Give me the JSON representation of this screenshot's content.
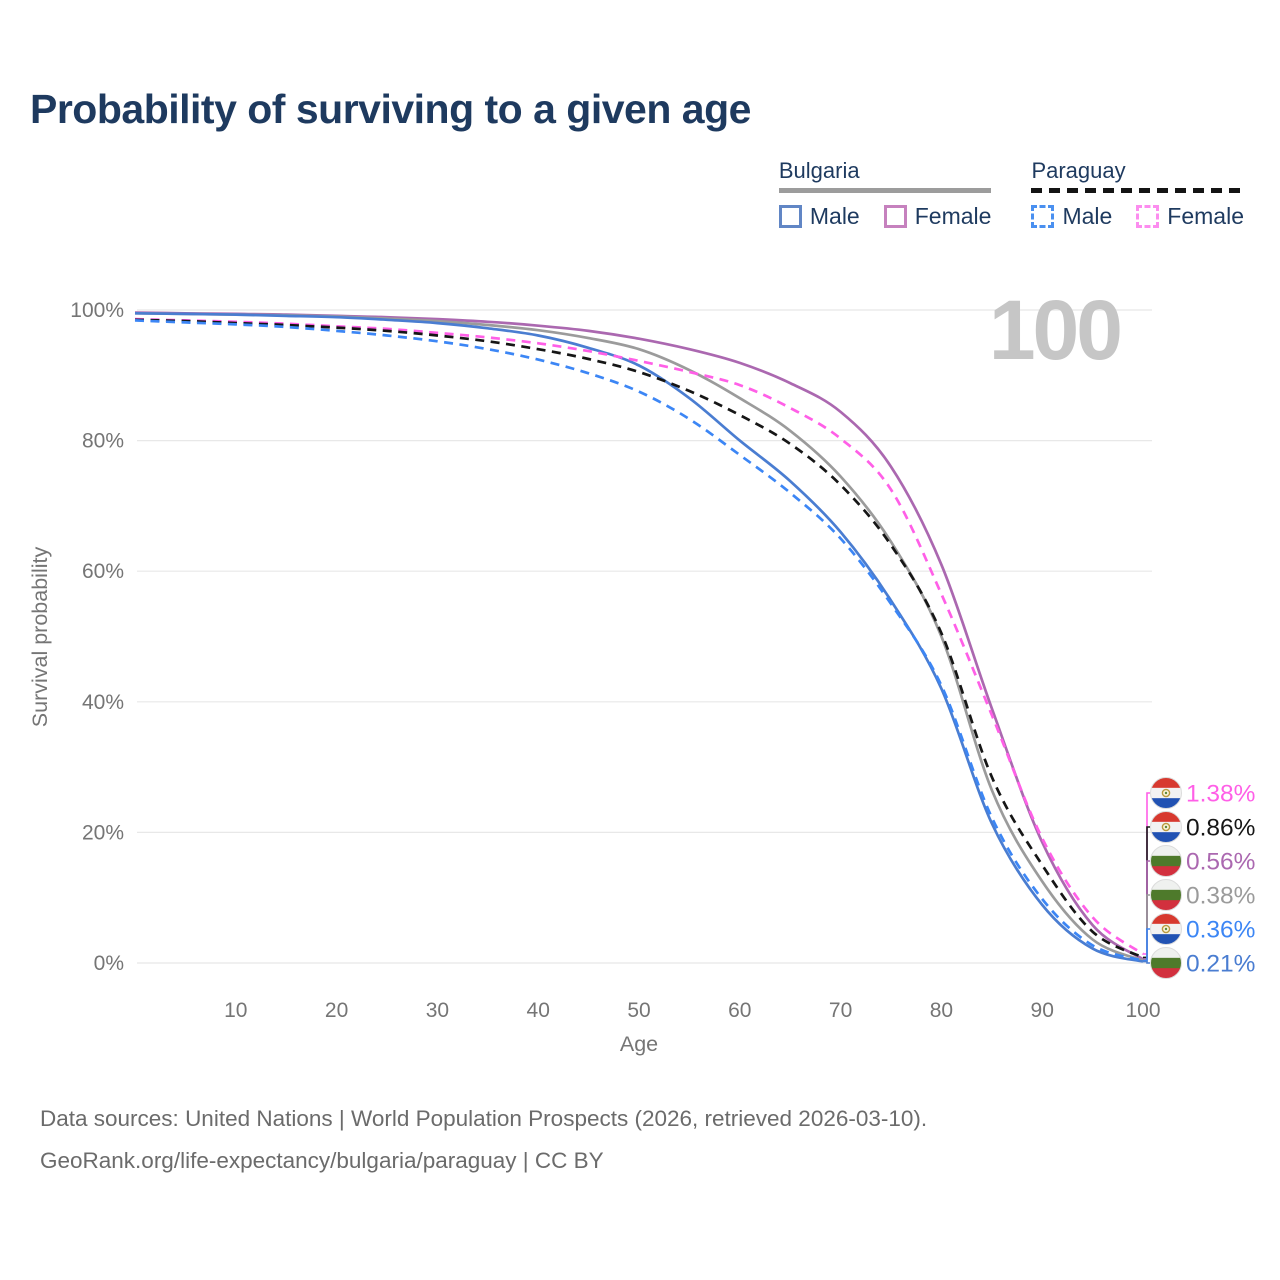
{
  "title": "Probability of surviving to a given age",
  "watermark_age": "100",
  "legend": {
    "groups": [
      {
        "country": "Bulgaria",
        "rule_style": "solid",
        "rule_color": "#9c9c9c",
        "items": [
          {
            "label": "Male",
            "color": "#6186c5",
            "dash": false
          },
          {
            "label": "Female",
            "color": "#c681be",
            "dash": false
          }
        ]
      },
      {
        "country": "Paraguay",
        "rule_style": "dashed",
        "rule_color": "#141414",
        "items": [
          {
            "label": "Male",
            "color": "#4a90f0",
            "dash": true
          },
          {
            "label": "Female",
            "color": "#fc8def",
            "dash": true
          }
        ]
      }
    ]
  },
  "chart_data": {
    "type": "line",
    "title": "Probability of surviving to a given age",
    "xlabel": "Age",
    "ylabel": "Survival probability",
    "xlim": [
      0,
      100
    ],
    "ylim": [
      0,
      100
    ],
    "x_ticks": [
      10,
      20,
      30,
      40,
      50,
      60,
      70,
      80,
      90,
      100
    ],
    "y_ticks": [
      0,
      20,
      40,
      60,
      80,
      100
    ],
    "y_tick_suffix": "%",
    "grid_on": true,
    "grid_color": "#e8e8e8",
    "axis_color": "#757575",
    "watermark_color": "#c6c6c6",
    "legend_position": "top-right",
    "x": [
      0,
      5,
      10,
      15,
      20,
      25,
      30,
      35,
      40,
      45,
      50,
      55,
      60,
      65,
      70,
      75,
      80,
      85,
      90,
      95,
      100
    ],
    "series": [
      {
        "name": "Bulgaria Female",
        "country": "Bulgaria",
        "sex": "Female",
        "color": "#ab68b0",
        "dash": false,
        "end_label": "0.56%",
        "values": [
          99.6,
          99.5,
          99.4,
          99.3,
          99.1,
          98.9,
          98.6,
          98.2,
          97.6,
          96.8,
          95.6,
          94.0,
          91.9,
          88.8,
          84.4,
          76.0,
          61.0,
          39.0,
          18.5,
          5.8,
          0.56
        ]
      },
      {
        "name": "Bulgaria Both sexes",
        "country": "Bulgaria",
        "sex": "Both",
        "color": "#9b9b9b",
        "dash": false,
        "end_label": "0.38%",
        "values": [
          99.5,
          99.4,
          99.3,
          99.2,
          99.0,
          98.7,
          98.3,
          97.7,
          96.9,
          95.7,
          94.0,
          90.8,
          86.5,
          81.5,
          74.5,
          64.5,
          50.0,
          26.5,
          12.5,
          3.6,
          0.38
        ]
      },
      {
        "name": "Bulgaria Male",
        "country": "Bulgaria",
        "sex": "Male",
        "color": "#4a7dd1",
        "dash": false,
        "end_label": "0.21%",
        "values": [
          99.5,
          99.4,
          99.3,
          99.1,
          98.9,
          98.5,
          98.0,
          97.2,
          96.1,
          94.2,
          91.5,
          86.5,
          80.0,
          73.8,
          66.0,
          55.5,
          42.0,
          21.4,
          8.9,
          2.2,
          0.21
        ]
      },
      {
        "name": "Paraguay Female",
        "country": "Paraguay",
        "sex": "Female",
        "color": "#ff5fe7",
        "dash": true,
        "end_label": "1.38%",
        "values": [
          98.6,
          98.4,
          98.2,
          97.9,
          97.5,
          97.1,
          96.5,
          95.8,
          94.9,
          93.7,
          92.2,
          90.5,
          88.5,
          85.0,
          80.3,
          72.5,
          56.5,
          38.0,
          19.1,
          7.0,
          1.38
        ]
      },
      {
        "name": "Paraguay Both sexes",
        "country": "Paraguay",
        "sex": "Both",
        "color": "#161616",
        "dash": true,
        "end_label": "0.86%",
        "values": [
          98.5,
          98.3,
          98.0,
          97.7,
          97.3,
          96.8,
          96.1,
          95.2,
          94.0,
          92.5,
          90.5,
          87.6,
          83.9,
          79.5,
          73.2,
          64.0,
          50.5,
          28.5,
          15.0,
          4.8,
          0.86
        ]
      },
      {
        "name": "Paraguay Male",
        "country": "Paraguay",
        "sex": "Male",
        "color": "#3c86f5",
        "dash": true,
        "end_label": "0.36%",
        "values": [
          98.4,
          98.1,
          97.8,
          97.4,
          96.8,
          96.1,
          95.2,
          94.0,
          92.4,
          90.3,
          87.5,
          83.3,
          77.8,
          72.0,
          65.0,
          55.0,
          42.5,
          22.3,
          9.8,
          2.7,
          0.36
        ]
      }
    ],
    "flag_colors": {
      "bulgaria": [
        "#eff1ef",
        "#4e7a2b",
        "#d2303e"
      ],
      "paraguay": [
        "#d7392f",
        "#f2f2f2",
        "#2152b3"
      ]
    }
  },
  "footer": {
    "line1": "Data sources: United Nations | World Population Prospects (2026, retrieved 2026-03-10).",
    "line2": "GeoRank.org/life-expectancy/bulgaria/paraguay | CC BY"
  }
}
